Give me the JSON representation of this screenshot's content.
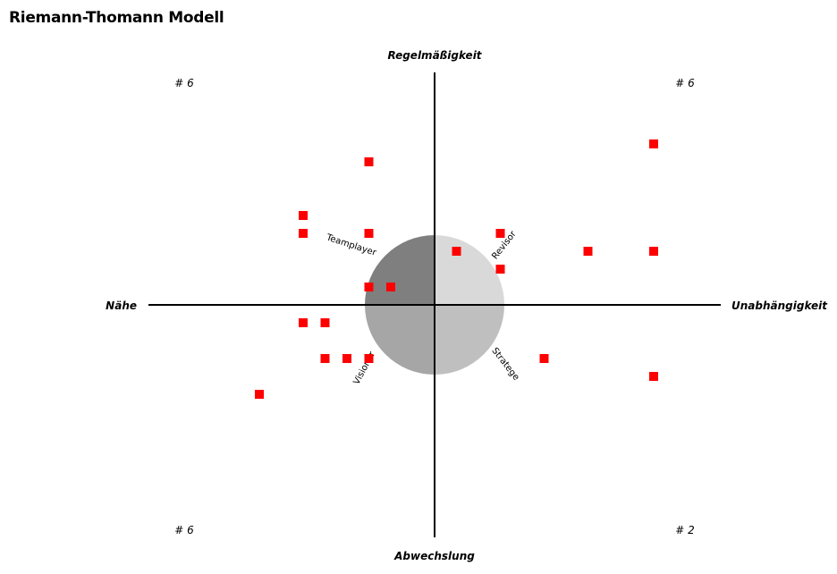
{
  "title": "Riemann-Thomann Modell",
  "chart_data": {
    "type": "scatter",
    "title": "Riemann-Thomann Modell",
    "axes": {
      "top": "Regelmäßigkeit",
      "bottom": "Abwechslung",
      "left": "Nähe",
      "right": "Unabhängigkeit"
    },
    "xlim": [
      -13,
      13
    ],
    "ylim": [
      -11,
      11
    ],
    "grid": false,
    "quadrant_counts": {
      "top_left": "# 6",
      "top_right": "# 6",
      "bottom_left": "# 6",
      "bottom_right": "# 2"
    },
    "types": {
      "top_left": "Teamplayer",
      "top_right": "Revisor",
      "bottom_left": "Visionär",
      "bottom_right": "Stratege"
    },
    "marker_color": "#ff0000",
    "points": [
      {
        "x": -3,
        "y": 8
      },
      {
        "x": -6,
        "y": 5
      },
      {
        "x": -6,
        "y": 4
      },
      {
        "x": -3,
        "y": 4
      },
      {
        "x": -3,
        "y": 1
      },
      {
        "x": -2,
        "y": 1
      },
      {
        "x": 3,
        "y": 4
      },
      {
        "x": 1,
        "y": 3
      },
      {
        "x": 3,
        "y": 2
      },
      {
        "x": 7,
        "y": 3
      },
      {
        "x": 10,
        "y": 3
      },
      {
        "x": 10,
        "y": 9
      },
      {
        "x": -6,
        "y": -1
      },
      {
        "x": -5,
        "y": -1
      },
      {
        "x": -5,
        "y": -3
      },
      {
        "x": -4,
        "y": -3
      },
      {
        "x": -3,
        "y": -3
      },
      {
        "x": -8,
        "y": -5
      },
      {
        "x": 5,
        "y": -3
      },
      {
        "x": 10,
        "y": -4
      }
    ]
  }
}
